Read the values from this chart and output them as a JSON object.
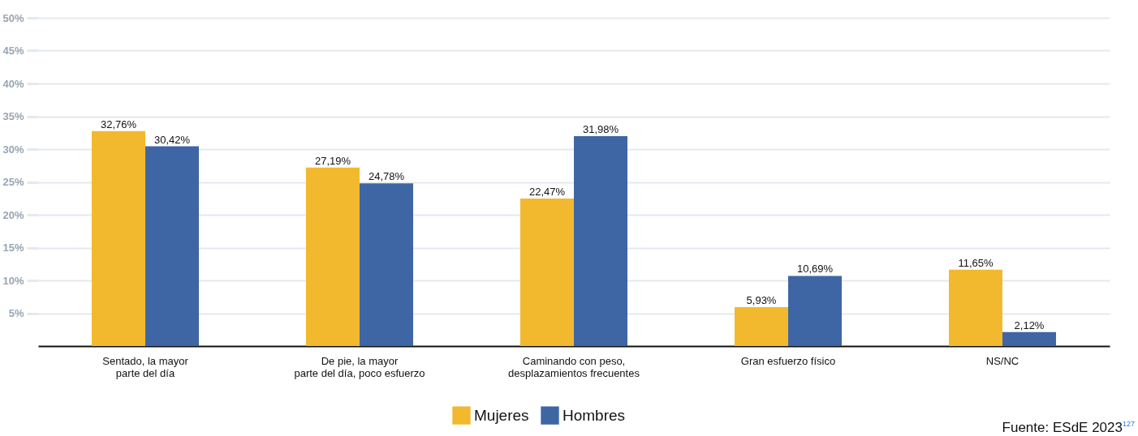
{
  "chart_data": {
    "type": "bar",
    "categories": [
      "Sentado, la mayor\nparte del día",
      "De pie, la mayor\nparte del día, poco esfuerzo",
      "Caminando con peso,\ndesplazamientos frecuentes",
      "Gran esfuerzo físico",
      "NS/NC"
    ],
    "series": [
      {
        "name": "Mujeres",
        "color": "#f2b92e",
        "values": [
          32.76,
          27.19,
          22.47,
          5.93,
          11.65
        ],
        "value_labels": [
          "32,76%",
          "27,19%",
          "22,47%",
          "5,93%",
          "11,65%"
        ]
      },
      {
        "name": "Hombres",
        "color": "#3e66a5",
        "values": [
          30.42,
          24.78,
          31.98,
          10.69,
          2.12
        ],
        "value_labels": [
          "30,42%",
          "24,78%",
          "31,98%",
          "10,69%",
          "2,12%"
        ]
      }
    ],
    "ylim": [
      0,
      50
    ],
    "yticks": [
      {
        "value": 5,
        "label": "5%"
      },
      {
        "value": 10,
        "label": "10%"
      },
      {
        "value": 15,
        "label": "15%"
      },
      {
        "value": 20,
        "label": "20%"
      },
      {
        "value": 25,
        "label": "25%"
      },
      {
        "value": 30,
        "label": "30%"
      },
      {
        "value": 35,
        "label": "35%"
      },
      {
        "value": 40,
        "label": "40%"
      },
      {
        "value": 45,
        "label": "45%"
      },
      {
        "value": 50,
        "label": "50%"
      }
    ],
    "grid": "y",
    "legend": "bottom",
    "annotations": [
      "Fuente: ESdE 2023$^{127}$"
    ]
  }
}
